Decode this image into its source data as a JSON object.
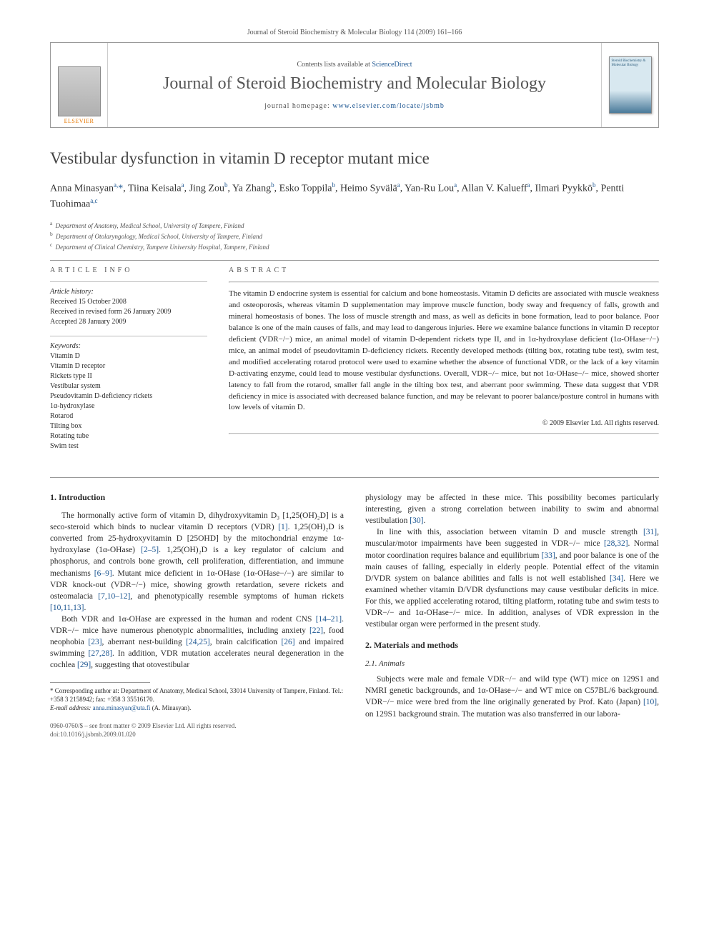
{
  "header": {
    "journal_line": "Journal of Steroid Biochemistry & Molecular Biology 114 (2009) 161–166",
    "contents_prefix": "Contents lists available at ",
    "contents_link": "ScienceDirect",
    "journal_name": "Journal of Steroid Biochemistry and Molecular Biology",
    "homepage_label": "journal homepage: ",
    "homepage_url": "www.elsevier.com/locate/jsbmb",
    "elsevier_label": "ELSEVIER",
    "cover_text": "Steroid Biochemistry & Molecular Biology"
  },
  "article": {
    "title": "Vestibular dysfunction in vitamin D receptor mutant mice",
    "authors_html": "Anna Minasyan<sup>a,</sup><span class='star'>*</span>, Tiina Keisala<sup>a</sup>, Jing Zou<sup>b</sup>, Ya Zhang<sup>b</sup>, Esko Toppila<sup>b</sup>, Heimo Syvälä<sup>a</sup>, Yan-Ru Lou<sup>a</sup>, Allan V. Kalueff<sup>a</sup>, Ilmari Pyykkö<sup>b</sup>, Pentti Tuohimaa<sup>a,c</sup>",
    "affiliations": {
      "a": "Department of Anatomy, Medical School, University of Tampere, Finland",
      "b": "Department of Otolaryngology, Medical School, University of Tampere, Finland",
      "c": "Department of Clinical Chemistry, Tampere University Hospital, Tampere, Finland"
    }
  },
  "info": {
    "heading": "ARTICLE INFO",
    "history_label": "Article history:",
    "history": {
      "received": "Received 15 October 2008",
      "revised": "Received in revised form 26 January 2009",
      "accepted": "Accepted 28 January 2009"
    },
    "keywords_label": "Keywords:",
    "keywords": [
      "Vitamin D",
      "Vitamin D receptor",
      "Rickets type II",
      "Vestibular system",
      "Pseudovitamin D-deficiency rickets",
      "1α-hydroxylase",
      "Rotarod",
      "Tilting box",
      "Rotating tube",
      "Swim test"
    ]
  },
  "abstract": {
    "heading": "ABSTRACT",
    "text": "The vitamin D endocrine system is essential for calcium and bone homeostasis. Vitamin D deficits are associated with muscle weakness and osteoporosis, whereas vitamin D supplementation may improve muscle function, body sway and frequency of falls, growth and mineral homeostasis of bones. The loss of muscle strength and mass, as well as deficits in bone formation, lead to poor balance. Poor balance is one of the main causes of falls, and may lead to dangerous injuries. Here we examine balance functions in vitamin D receptor deficient (VDR−/−) mice, an animal model of vitamin D-dependent rickets type II, and in 1α-hydroxylase deficient (1α-OHase−/−) mice, an animal model of pseudovitamin D-deficiency rickets. Recently developed methods (tilting box, rotating tube test), swim test, and modified accelerating rotarod protocol were used to examine whether the absence of functional VDR, or the lack of a key vitamin D-activating enzyme, could lead to mouse vestibular dysfunctions. Overall, VDR−/− mice, but not 1α-OHase−/− mice, showed shorter latency to fall from the rotarod, smaller fall angle in the tilting box test, and aberrant poor swimming. These data suggest that VDR deficiency in mice is associated with decreased balance function, and may be relevant to poorer balance/posture control in humans with low levels of vitamin D.",
    "copyright": "© 2009 Elsevier Ltd. All rights reserved."
  },
  "body": {
    "s1_heading": "1.  Introduction",
    "p1": "The hormonally active form of vitamin D, dihydroxyvitamin D₃ [1,25(OH)₂D] is a seco-steroid which binds to nuclear vitamin D receptors (VDR) [1]. 1,25(OH)₂D is converted from 25-hydroxyvitamin D [25OHD] by the mitochondrial enzyme 1α-hydroxylase (1α-OHase) [2–5]. 1,25(OH)₂D is a key regulator of calcium and phosphorus, and controls bone growth, cell proliferation, differentiation, and immune mechanisms [6–9]. Mutant mice deficient in 1α-OHase (1α-OHase−/−) are similar to VDR knock-out (VDR−/−) mice, showing growth retardation, severe rickets and osteomalacia [7,10–12], and phenotypically resemble symptoms of human rickets [10,11,13].",
    "p2": "Both VDR and 1α-OHase are expressed in the human and rodent CNS [14–21]. VDR−/− mice have numerous phenotypic abnormalities, including anxiety [22], food neophobia [23], aberrant nest-building [24,25], brain calcification [26] and impaired swimming [27,28]. In addition, VDR mutation accelerates neural degeneration in the cochlea [29], suggesting that otovestibular",
    "p3": "physiology may be affected in these mice. This possibility becomes particularly interesting, given a strong correlation between inability to swim and abnormal vestibulation [30].",
    "p4": "In line with this, association between vitamin D and muscle strength [31], muscular/motor impairments have been suggested in VDR−/− mice [28,32]. Normal motor coordination requires balance and equilibrium [33], and poor balance is one of the main causes of falling, especially in elderly people. Potential effect of the vitamin D/VDR system on balance abilities and falls is not well established [34]. Here we examined whether vitamin D/VDR dysfunctions may cause vestibular deficits in mice. For this, we applied accelerating rotarod, tilting platform, rotating tube and swim tests to VDR−/− and 1α-OHase−/− mice. In addition, analyses of VDR expression in the vestibular organ were performed in the present study.",
    "s2_heading": "2.  Materials and methods",
    "s2_1_heading": "2.1.  Animals",
    "p5": "Subjects were male and female VDR−/− and wild type (WT) mice on 129S1 and NMRI genetic backgrounds, and 1α-OHase−/− and WT mice on C57BL/6 background. VDR−/− mice were bred from the line originally generated by Prof. Kato (Japan) [10], on 129S1 background strain. The mutation was also transferred in our labora-"
  },
  "footnote": {
    "corr": "* Corresponding author at: Department of Anatomy, Medical School, 33014 University of Tampere, Finland. Tel.: +358 3 2158942; fax: +358 3 35516170.",
    "email_label": "E-mail address:",
    "email": "anna.minasyan@uta.fi",
    "email_who": "(A. Minasyan)."
  },
  "footer": {
    "issn_line": "0960-0760/$ – see front matter © 2009 Elsevier Ltd. All rights reserved.",
    "doi_line": "doi:10.1016/j.jsbmb.2009.01.020"
  },
  "colors": {
    "link": "#1a5490",
    "text": "#2a2a2a",
    "muted": "#555555",
    "orange": "#e67700",
    "border": "#999999"
  }
}
